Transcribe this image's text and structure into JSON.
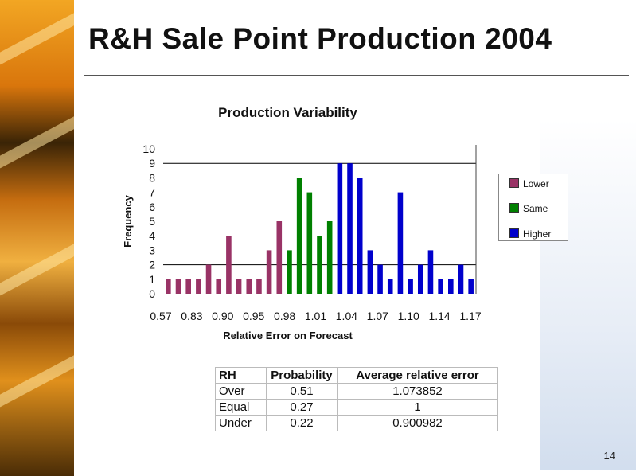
{
  "slide": {
    "title": "R&H Sale Point Production 2004",
    "page_number": "14"
  },
  "legend": {
    "items": [
      {
        "label": "Lower",
        "color": "#993366"
      },
      {
        "label": "Same",
        "color": "#008000"
      },
      {
        "label": "Higher",
        "color": "#0000cc"
      }
    ]
  },
  "chart_data": {
    "type": "bar",
    "title": "Production Variability",
    "xlabel": "Relative Error on Forecast",
    "ylabel": "Frequency",
    "ylim": [
      0,
      10
    ],
    "y_ticks": [
      "0",
      "1",
      "2",
      "3",
      "4",
      "5",
      "6",
      "7",
      "8",
      "9",
      "10"
    ],
    "x_tick_labels": [
      "0.57",
      "0.83",
      "0.90",
      "0.95",
      "0.98",
      "1.01",
      "1.04",
      "1.07",
      "1.10",
      "1.14",
      "1.17"
    ],
    "gridlines_at": [
      2,
      9
    ],
    "grid": true,
    "legend_position": "right",
    "series": [
      {
        "name": "Lower",
        "color": "#993366",
        "values": [
          1,
          1,
          1,
          1,
          2,
          1,
          4,
          1,
          1,
          1,
          3,
          5,
          null,
          null,
          null,
          null,
          null,
          null,
          null,
          null,
          null,
          null,
          null,
          null,
          null,
          null,
          null,
          null,
          null,
          null,
          null
        ]
      },
      {
        "name": "Same",
        "color": "#008000",
        "values": [
          null,
          null,
          null,
          null,
          null,
          null,
          null,
          null,
          null,
          null,
          null,
          null,
          3,
          8,
          7,
          4,
          5,
          null,
          null,
          null,
          null,
          null,
          null,
          null,
          null,
          null,
          null,
          null,
          null,
          null,
          null
        ]
      },
      {
        "name": "Higher",
        "color": "#0000cc",
        "values": [
          null,
          null,
          null,
          null,
          null,
          null,
          null,
          null,
          null,
          null,
          null,
          null,
          null,
          null,
          null,
          null,
          null,
          9,
          9,
          8,
          3,
          2,
          1,
          7,
          1,
          2,
          3,
          1,
          1,
          2,
          1
        ]
      }
    ]
  },
  "table": {
    "headers": [
      "RH",
      "Probability",
      "Average relative error"
    ],
    "rows": [
      [
        "Over",
        "0.51",
        "1.073852"
      ],
      [
        "Equal",
        "0.27",
        "1"
      ],
      [
        "Under",
        "0.22",
        "0.900982"
      ]
    ]
  }
}
